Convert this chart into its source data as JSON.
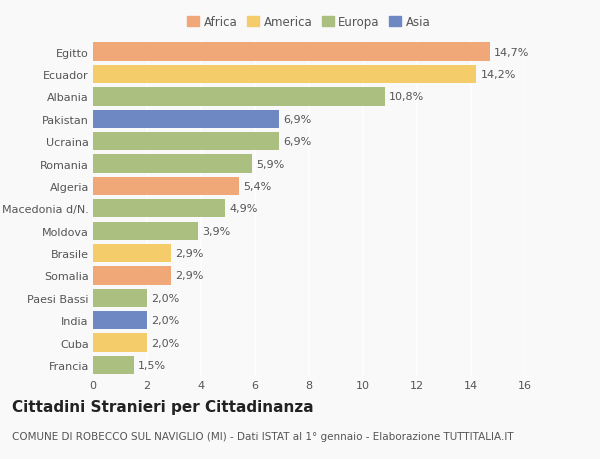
{
  "countries": [
    "Egitto",
    "Ecuador",
    "Albania",
    "Pakistan",
    "Ucraina",
    "Romania",
    "Algeria",
    "Macedonia d/N.",
    "Moldova",
    "Brasile",
    "Somalia",
    "Paesi Bassi",
    "India",
    "Cuba",
    "Francia"
  ],
  "values": [
    14.7,
    14.2,
    10.8,
    6.9,
    6.9,
    5.9,
    5.4,
    4.9,
    3.9,
    2.9,
    2.9,
    2.0,
    2.0,
    2.0,
    1.5
  ],
  "labels": [
    "14,7%",
    "14,2%",
    "10,8%",
    "6,9%",
    "6,9%",
    "5,9%",
    "5,4%",
    "4,9%",
    "3,9%",
    "2,9%",
    "2,9%",
    "2,0%",
    "2,0%",
    "2,0%",
    "1,5%"
  ],
  "continents": [
    "Africa",
    "America",
    "Europa",
    "Asia",
    "Europa",
    "Europa",
    "Africa",
    "Europa",
    "Europa",
    "America",
    "Africa",
    "Europa",
    "Asia",
    "America",
    "Europa"
  ],
  "colors": {
    "Africa": "#F0A878",
    "America": "#F5CC6A",
    "Europa": "#AABF80",
    "Asia": "#6E88C4"
  },
  "legend_order": [
    "Africa",
    "America",
    "Europa",
    "Asia"
  ],
  "xlim": [
    0,
    16
  ],
  "xticks": [
    0,
    2,
    4,
    6,
    8,
    10,
    12,
    14,
    16
  ],
  "title": "Cittadini Stranieri per Cittadinanza",
  "subtitle": "COMUNE DI ROBECCO SUL NAVIGLIO (MI) - Dati ISTAT al 1° gennaio - Elaborazione TUTTITALIA.IT",
  "background_color": "#f9f9f9",
  "bar_height": 0.82,
  "title_fontsize": 11,
  "subtitle_fontsize": 7.5,
  "label_fontsize": 8,
  "tick_fontsize": 8,
  "legend_fontsize": 8.5
}
